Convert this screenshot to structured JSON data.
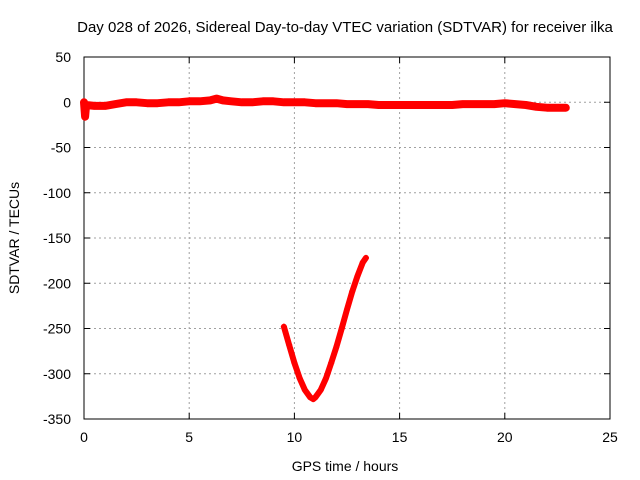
{
  "chart_data": {
    "type": "scatter",
    "title": "Day 028 of 2026, Sidereal Day-to-day VTEC variation (SDTVAR) for receiver ilka",
    "xlabel": "GPS time / hours",
    "ylabel": "SDTVAR / TECUs",
    "xlim": [
      0,
      25
    ],
    "ylim": [
      -350,
      50
    ],
    "xticks": [
      0,
      5,
      10,
      15,
      20,
      25
    ],
    "yticks": [
      50,
      0,
      -50,
      -100,
      -150,
      -200,
      -250,
      -300,
      -350
    ],
    "grid": true,
    "legend": "none",
    "marker_color": "#ff0000",
    "series": [
      {
        "x": [
          0.0,
          0.05,
          0.1,
          0.5,
          1.0,
          1.5,
          2.0,
          2.5,
          3.0,
          3.5,
          4.0,
          4.5,
          5.0,
          5.5,
          6.0,
          6.3,
          6.6,
          7.0,
          7.5,
          8.0,
          8.5,
          9.0,
          9.5,
          10.0,
          10.5,
          11.0,
          11.5,
          12.0,
          12.5,
          13.0,
          13.5,
          14.0,
          14.5,
          15.0,
          15.5,
          16.0,
          16.5,
          17.0,
          17.5,
          18.0,
          18.5,
          19.0,
          19.5,
          20.0,
          20.5,
          21.0,
          21.5,
          22.0,
          22.5,
          22.9
        ],
        "y": [
          0,
          -16,
          -3,
          -4,
          -4,
          -2,
          0,
          0,
          -1,
          -1,
          0,
          0,
          1,
          1,
          2,
          4,
          2,
          1,
          0,
          0,
          1,
          1,
          0,
          0,
          0,
          -1,
          -1,
          -1,
          -2,
          -2,
          -2,
          -3,
          -3,
          -3,
          -3,
          -3,
          -3,
          -3,
          -3,
          -2,
          -2,
          -2,
          -2,
          -1,
          -2,
          -3,
          -5,
          -6,
          -6,
          -6
        ]
      },
      {
        "x": [
          9.5,
          9.75,
          10.0,
          10.25,
          10.5,
          10.75,
          10.9,
          11.0,
          11.25,
          11.5,
          11.75,
          12.0,
          12.25,
          12.5,
          12.75,
          13.0,
          13.25,
          13.4
        ],
        "y": [
          -248,
          -268,
          -288,
          -305,
          -318,
          -326,
          -328,
          -326,
          -318,
          -305,
          -288,
          -270,
          -250,
          -229,
          -209,
          -192,
          -177,
          -172
        ]
      }
    ]
  }
}
